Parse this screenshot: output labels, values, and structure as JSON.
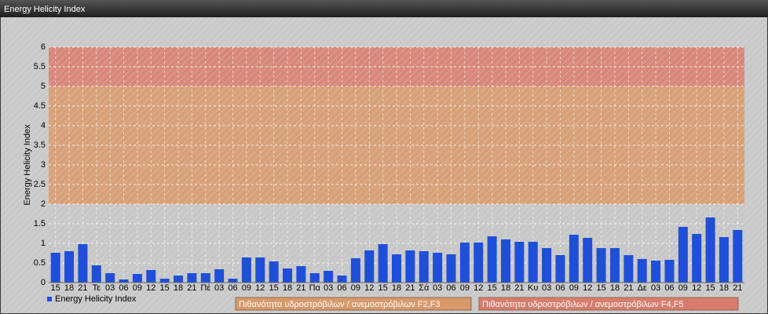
{
  "chart_data": {
    "type": "bar",
    "title": "Energy Helicity Index",
    "y_label": "Energy Helicity Index",
    "categories": [
      "15",
      "18",
      "21",
      "Τε",
      "03",
      "06",
      "09",
      "12",
      "15",
      "18",
      "21",
      "Πέ",
      "03",
      "06",
      "09",
      "12",
      "15",
      "18",
      "21",
      "Πα",
      "03",
      "06",
      "09",
      "12",
      "15",
      "18",
      "21",
      "Σά",
      "03",
      "06",
      "09",
      "12",
      "15",
      "18",
      "21",
      "Κυ",
      "03",
      "06",
      "09",
      "12",
      "15",
      "18",
      "21",
      "Δε",
      "03",
      "06",
      "09",
      "12",
      "15",
      "18",
      "21"
    ],
    "series": [
      {
        "name": "Energy Helicity Index",
        "color": "#1f4fd8",
        "values": [
          0.76,
          0.8,
          0.98,
          0.44,
          0.24,
          0.08,
          0.22,
          0.32,
          0.1,
          0.18,
          0.24,
          0.24,
          0.34,
          0.1,
          0.64,
          0.64,
          0.54,
          0.36,
          0.42,
          0.24,
          0.3,
          0.18,
          0.62,
          0.82,
          0.98,
          0.72,
          0.82,
          0.8,
          0.76,
          0.72,
          1.02,
          1.02,
          1.18,
          1.1,
          1.04,
          1.04,
          0.88,
          0.7,
          1.22,
          1.14,
          0.88,
          0.88,
          0.7,
          0.6,
          0.56,
          0.58,
          1.42,
          1.24,
          1.66,
          1.16,
          1.34
        ]
      }
    ],
    "bands": [
      {
        "from": 0,
        "to": 2,
        "color": "#c6c6c6"
      },
      {
        "from": 2,
        "to": 5,
        "color": "#d9996a",
        "label": "Πιθανότητα υδροστρόβιλων / ανεμοστρόβιλων F2,F3"
      },
      {
        "from": 5,
        "to": 6,
        "color": "#d97c6c",
        "label": "Πιθανότητα υδροστρόβιλων / ανεμοστρόβιλων F4,F5"
      }
    ],
    "ylim": [
      0,
      6
    ],
    "yticks": [
      0,
      0.5,
      1,
      1.5,
      2,
      2.5,
      3,
      3.5,
      4,
      4.5,
      5,
      5.5,
      6
    ],
    "grid": true
  }
}
